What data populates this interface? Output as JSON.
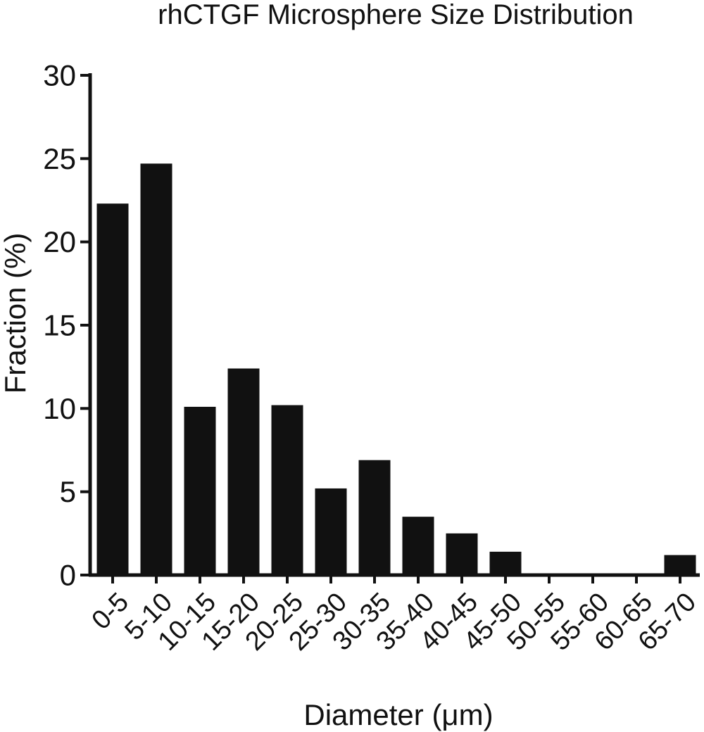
{
  "chart_data": {
    "type": "bar",
    "title": "rhCTGF Microsphere  Size  Distribution",
    "xlabel": "Diameter (μm)",
    "ylabel": "Fraction (%)",
    "ylim": [
      0,
      30
    ],
    "yticks": [
      0,
      5,
      10,
      15,
      20,
      25,
      30
    ],
    "categories": [
      "0-5",
      "5-10",
      "10-15",
      "15-20",
      "20-25",
      "25-30",
      "30-35",
      "35-40",
      "40-45",
      "45-50",
      "50-55",
      "55-60",
      "60-65",
      "65-70"
    ],
    "values": [
      22.3,
      24.7,
      10.1,
      12.4,
      10.2,
      5.2,
      6.9,
      3.5,
      2.5,
      1.4,
      0,
      0,
      0,
      1.2
    ],
    "bar_color": "#111111",
    "grid": false,
    "legend": "none"
  }
}
